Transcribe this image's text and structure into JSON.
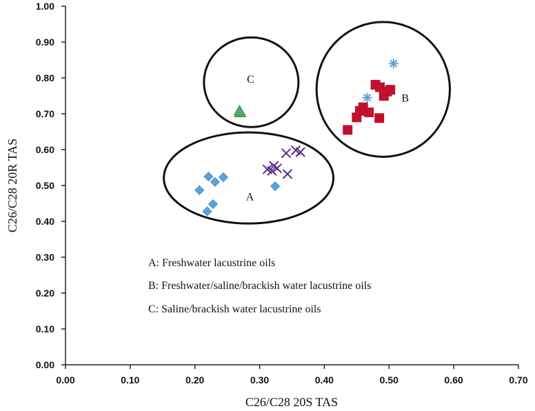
{
  "chart_data": {
    "type": "scatter",
    "xlabel": "C26/C28 20S TAS",
    "ylabel": "C26/C28 20R TAS",
    "xlim": [
      0,
      0.7
    ],
    "ylim": [
      0,
      1
    ],
    "x_ticks": [
      "0.00",
      "0.10",
      "0.20",
      "0.30",
      "0.40",
      "0.50",
      "0.60",
      "0.70"
    ],
    "y_ticks": [
      "0.00",
      "0.10",
      "0.20",
      "0.30",
      "0.40",
      "0.50",
      "0.60",
      "0.70",
      "0.80",
      "0.90",
      "1.00"
    ],
    "grid": false,
    "series": [
      {
        "name": "diamond",
        "marker": "diamond",
        "color": "#5ba3d9",
        "points": [
          {
            "x": 0.207,
            "y": 0.487
          },
          {
            "x": 0.221,
            "y": 0.525
          },
          {
            "x": 0.231,
            "y": 0.51
          },
          {
            "x": 0.244,
            "y": 0.523
          },
          {
            "x": 0.228,
            "y": 0.448
          },
          {
            "x": 0.219,
            "y": 0.428
          },
          {
            "x": 0.324,
            "y": 0.498
          }
        ]
      },
      {
        "name": "cross",
        "marker": "x",
        "color": "#5a2d82",
        "points": [
          {
            "x": 0.312,
            "y": 0.545
          },
          {
            "x": 0.322,
            "y": 0.555
          },
          {
            "x": 0.319,
            "y": 0.541
          },
          {
            "x": 0.327,
            "y": 0.548
          },
          {
            "x": 0.341,
            "y": 0.59
          },
          {
            "x": 0.343,
            "y": 0.532
          },
          {
            "x": 0.356,
            "y": 0.598
          },
          {
            "x": 0.363,
            "y": 0.593
          }
        ]
      },
      {
        "name": "square",
        "marker": "square",
        "color": "#c0102e",
        "points": [
          {
            "x": 0.436,
            "y": 0.655
          },
          {
            "x": 0.45,
            "y": 0.69
          },
          {
            "x": 0.455,
            "y": 0.708
          },
          {
            "x": 0.46,
            "y": 0.718
          },
          {
            "x": 0.469,
            "y": 0.704
          },
          {
            "x": 0.479,
            "y": 0.781
          },
          {
            "x": 0.486,
            "y": 0.774
          },
          {
            "x": 0.492,
            "y": 0.75
          },
          {
            "x": 0.497,
            "y": 0.762
          },
          {
            "x": 0.502,
            "y": 0.767
          },
          {
            "x": 0.485,
            "y": 0.688
          }
        ]
      },
      {
        "name": "asterisk",
        "marker": "asterisk",
        "color": "#5ba3d9",
        "points": [
          {
            "x": 0.466,
            "y": 0.745
          },
          {
            "x": 0.507,
            "y": 0.84
          }
        ]
      },
      {
        "name": "triangle",
        "marker": "triangle",
        "color": "#5aa870",
        "points": [
          {
            "x": 0.27,
            "y": 0.703
          },
          {
            "x": 0.269,
            "y": 0.708
          }
        ]
      }
    ],
    "regions": [
      {
        "label": "A",
        "cx": 0.283,
        "cy": 0.521,
        "rx": 0.131,
        "ry": 0.127,
        "label_x": 0.285,
        "label_y": 0.47
      },
      {
        "label": "B",
        "cx": 0.491,
        "cy": 0.768,
        "rx": 0.103,
        "ry": 0.188,
        "label_x": 0.525,
        "label_y": 0.745
      },
      {
        "label": "C",
        "cx": 0.287,
        "cy": 0.788,
        "rx": 0.073,
        "ry": 0.125,
        "label_x": 0.286,
        "label_y": 0.798
      }
    ],
    "legend": [
      "A: Freshwater lacustrine oils",
      "B: Freshwater/saline/brackish water lacustrine oils",
      "C: Saline/brackish water lacustrine oils"
    ]
  }
}
